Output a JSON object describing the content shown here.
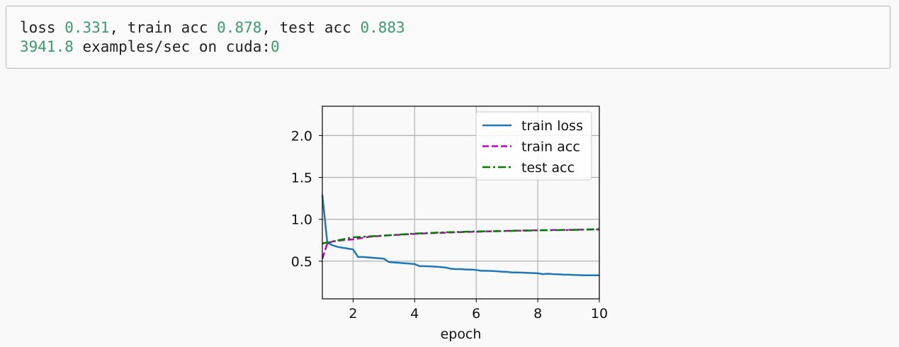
{
  "output": {
    "line1": {
      "label_loss": "loss ",
      "loss": "0.331",
      "label_train_acc": ", train acc ",
      "train_acc": "0.878",
      "label_test_acc": ", test acc ",
      "test_acc": "0.883"
    },
    "line2": {
      "speed": "3941.8",
      "label_speed": " examples/sec on cuda:",
      "device_index": "0"
    }
  },
  "chart_data": {
    "type": "line",
    "xlabel": "epoch",
    "ylabel": "",
    "xlim": [
      1,
      10
    ],
    "ylim": [
      0.05,
      2.35
    ],
    "xticks": [
      2,
      4,
      6,
      8,
      10
    ],
    "yticks": [
      0.5,
      1.0,
      1.5,
      2.0
    ],
    "xtick_labels": [
      "2",
      "4",
      "6",
      "8",
      "10"
    ],
    "ytick_labels": [
      "0.5",
      "1.0",
      "1.5",
      "2.0"
    ],
    "grid": true,
    "legend_position": "top-right",
    "series": [
      {
        "name": "train loss",
        "color": "#1f77b4",
        "style": "solid",
        "x": [
          1.0,
          1.16,
          1.33,
          1.5,
          1.66,
          1.83,
          2.0,
          2.16,
          2.33,
          2.5,
          2.66,
          2.83,
          3.0,
          3.16,
          3.33,
          3.5,
          3.66,
          3.83,
          4.0,
          4.16,
          4.33,
          4.5,
          4.66,
          4.83,
          5.0,
          5.16,
          5.33,
          5.5,
          5.66,
          5.83,
          6.0,
          6.16,
          6.33,
          6.5,
          6.66,
          6.83,
          7.0,
          7.16,
          7.33,
          7.5,
          7.66,
          7.83,
          8.0,
          8.16,
          8.33,
          8.5,
          8.66,
          8.83,
          9.0,
          9.16,
          9.33,
          9.5,
          9.66,
          9.83,
          10.0
        ],
        "y": [
          1.29,
          0.72,
          0.69,
          0.67,
          0.66,
          0.65,
          0.64,
          0.55,
          0.55,
          0.545,
          0.54,
          0.535,
          0.53,
          0.49,
          0.485,
          0.48,
          0.475,
          0.47,
          0.465,
          0.44,
          0.44,
          0.438,
          0.435,
          0.43,
          0.425,
          0.41,
          0.405,
          0.405,
          0.4,
          0.4,
          0.395,
          0.385,
          0.385,
          0.383,
          0.38,
          0.375,
          0.372,
          0.365,
          0.365,
          0.363,
          0.36,
          0.358,
          0.355,
          0.345,
          0.35,
          0.345,
          0.343,
          0.34,
          0.338,
          0.335,
          0.333,
          0.332,
          0.331,
          0.331,
          0.331
        ]
      },
      {
        "name": "train acc",
        "color": "#bf00bf",
        "style": "dashed",
        "x": [
          1.0,
          1.16,
          1.33,
          1.66,
          2.0,
          2.5,
          3.0,
          3.5,
          4.0,
          4.5,
          5.0,
          5.5,
          6.0,
          6.5,
          7.0,
          7.5,
          8.0,
          8.5,
          9.0,
          9.5,
          10.0
        ],
        "y": [
          0.53,
          0.71,
          0.735,
          0.75,
          0.76,
          0.79,
          0.805,
          0.815,
          0.825,
          0.835,
          0.84,
          0.847,
          0.852,
          0.857,
          0.862,
          0.866,
          0.869,
          0.872,
          0.874,
          0.876,
          0.878
        ]
      },
      {
        "name": "test acc",
        "color": "#008000",
        "style": "dashdot",
        "x": [
          1,
          2,
          3,
          4,
          5,
          6,
          7,
          8,
          9,
          10
        ],
        "y": [
          0.71,
          0.785,
          0.805,
          0.83,
          0.845,
          0.855,
          0.86,
          0.868,
          0.872,
          0.883
        ]
      }
    ]
  }
}
